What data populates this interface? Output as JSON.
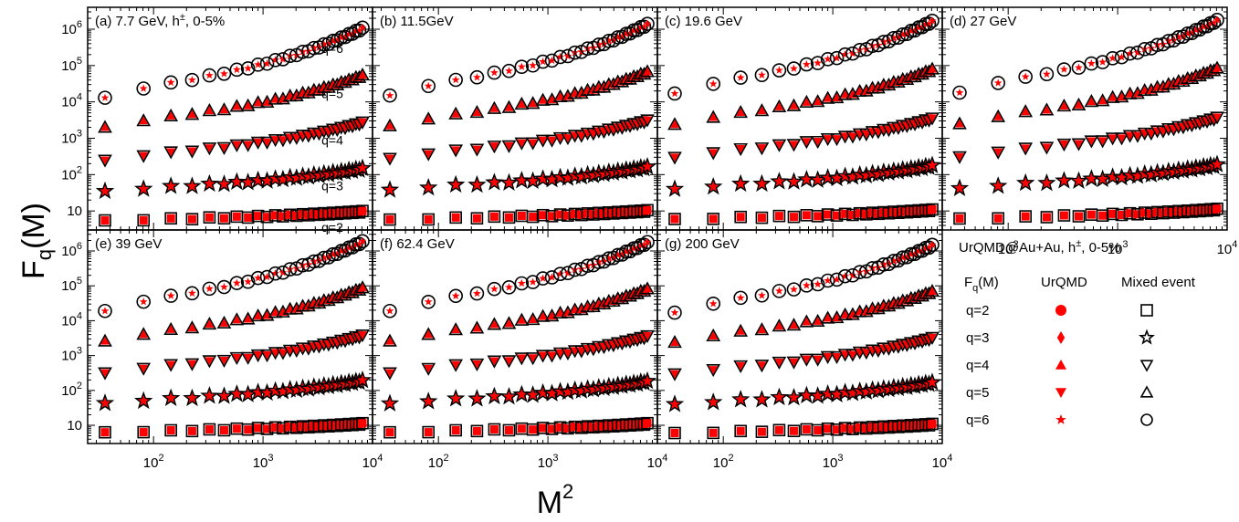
{
  "figure": {
    "ylabel": "F",
    "ylabel_sub": "q",
    "ylabel_tail": "(M)",
    "xlabel": "M",
    "xlabel_sup": "2"
  },
  "chart_data": {
    "type": "scatter",
    "x_scale": "log",
    "y_scale": "log",
    "xlim": [
      25,
      10000
    ],
    "ylim": [
      3,
      4000000
    ],
    "x": [
      36,
      81,
      144,
      225,
      324,
      441,
      576,
      729,
      900,
      1089,
      1296,
      1521,
      1764,
      2025,
      2304,
      2601,
      2916,
      3249,
      3600,
      3969,
      4356,
      4761,
      5184,
      5625,
      6084,
      6561,
      7056,
      7569,
      8100
    ],
    "x_ticks": [
      {
        "value": 100,
        "base": "10",
        "exp": "2"
      },
      {
        "value": 1000,
        "base": "10",
        "exp": "3"
      },
      {
        "value": 10000,
        "base": "10",
        "exp": "4"
      }
    ],
    "y_ticks": [
      {
        "value": 10,
        "base": "10",
        "exp": ""
      },
      {
        "value": 100,
        "base": "10",
        "exp": "2"
      },
      {
        "value": 1000,
        "base": "10",
        "exp": "3"
      },
      {
        "value": 10000,
        "base": "10",
        "exp": "4"
      },
      {
        "value": 100000,
        "base": "10",
        "exp": "5"
      },
      {
        "value": 1000000,
        "base": "10",
        "exp": "6"
      }
    ],
    "q_labels": [
      "q=6",
      "q=5",
      "q=4",
      "q=3",
      "q=2"
    ],
    "panels": [
      {
        "title": "(a) 7.7 GeV, h",
        "title_sup": "±",
        "title_tail": ", 0-5%",
        "series": [
          {
            "q": 2,
            "start": 5.5,
            "end": 10
          },
          {
            "q": 3,
            "start": 35,
            "end": 150
          },
          {
            "q": 4,
            "start": 250,
            "end": 2800
          },
          {
            "q": 5,
            "start": 2000,
            "end": 55000
          },
          {
            "q": 6,
            "start": 13000,
            "end": 1100000
          }
        ]
      },
      {
        "title": "(b) 11.5GeV",
        "title_sup": "",
        "title_tail": "",
        "series": [
          {
            "q": 2,
            "start": 5.8,
            "end": 10.5
          },
          {
            "q": 3,
            "start": 38,
            "end": 165
          },
          {
            "q": 4,
            "start": 280,
            "end": 3200
          },
          {
            "q": 5,
            "start": 2200,
            "end": 68000
          },
          {
            "q": 6,
            "start": 15000,
            "end": 1400000
          }
        ]
      },
      {
        "title": "(c) 19.6 GeV",
        "title_sup": "",
        "title_tail": "",
        "series": [
          {
            "q": 2,
            "start": 6.0,
            "end": 11
          },
          {
            "q": 3,
            "start": 40,
            "end": 180
          },
          {
            "q": 4,
            "start": 300,
            "end": 3600
          },
          {
            "q": 5,
            "start": 2400,
            "end": 80000
          },
          {
            "q": 6,
            "start": 17000,
            "end": 1700000
          }
        ]
      },
      {
        "title": "(d) 27 GeV",
        "title_sup": "",
        "title_tail": "",
        "series": [
          {
            "q": 2,
            "start": 6.2,
            "end": 11.5
          },
          {
            "q": 3,
            "start": 42,
            "end": 190
          },
          {
            "q": 4,
            "start": 310,
            "end": 3800
          },
          {
            "q": 5,
            "start": 2500,
            "end": 85000
          },
          {
            "q": 6,
            "start": 18000,
            "end": 1800000
          }
        ]
      },
      {
        "title": "(e) 39 GeV",
        "title_sup": "",
        "title_tail": "",
        "series": [
          {
            "q": 2,
            "start": 6.3,
            "end": 11.5
          },
          {
            "q": 3,
            "start": 43,
            "end": 195
          },
          {
            "q": 4,
            "start": 320,
            "end": 3900
          },
          {
            "q": 5,
            "start": 2600,
            "end": 88000
          },
          {
            "q": 6,
            "start": 19000,
            "end": 1900000
          }
        ]
      },
      {
        "title": "(f) 62.4 GeV",
        "title_sup": "",
        "title_tail": "",
        "series": [
          {
            "q": 2,
            "start": 6.3,
            "end": 11.5
          },
          {
            "q": 3,
            "start": 42,
            "end": 185
          },
          {
            "q": 4,
            "start": 320,
            "end": 3700
          },
          {
            "q": 5,
            "start": 2600,
            "end": 82000
          },
          {
            "q": 6,
            "start": 19000,
            "end": 1800000
          }
        ]
      },
      {
        "title": "(g) 200 GeV",
        "title_sup": "",
        "title_tail": "",
        "series": [
          {
            "q": 2,
            "start": 6.0,
            "end": 11
          },
          {
            "q": 3,
            "start": 40,
            "end": 170
          },
          {
            "q": 4,
            "start": 300,
            "end": 3300
          },
          {
            "q": 5,
            "start": 2400,
            "end": 70000
          },
          {
            "q": 6,
            "start": 17000,
            "end": 1500000
          }
        ]
      }
    ],
    "legend": {
      "title": "UrQMD@Au+Au, h",
      "title_sup": "±",
      "title_tail": ", 0-5%",
      "col1_header": "F",
      "col1_sub": "q",
      "col1_tail": "(M)",
      "col2_header": "UrQMD",
      "col3_header": "Mixed event",
      "rows": [
        {
          "label": "q=2",
          "urqmd_marker": "filled-circle",
          "mixed_marker": "open-square"
        },
        {
          "label": "q=3",
          "urqmd_marker": "filled-diamond",
          "mixed_marker": "open-star"
        },
        {
          "label": "q=4",
          "urqmd_marker": "filled-triangle-up",
          "mixed_marker": "open-triangle-down"
        },
        {
          "label": "q=5",
          "urqmd_marker": "filled-triangle-down",
          "mixed_marker": "open-triangle-up"
        },
        {
          "label": "q=6",
          "urqmd_marker": "filled-star",
          "mixed_marker": "open-circle"
        }
      ]
    },
    "colors": {
      "urqmd": "#ff0000",
      "mixed": "#000000"
    }
  }
}
